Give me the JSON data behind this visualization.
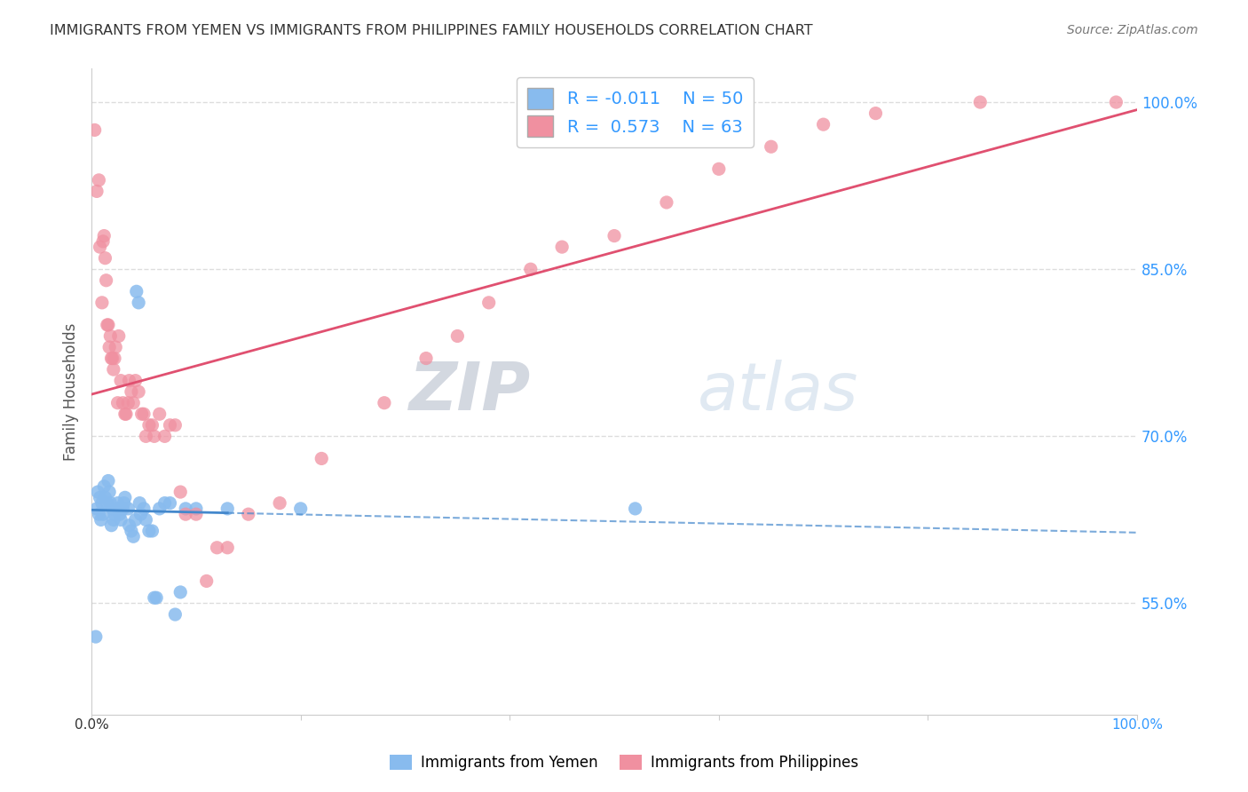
{
  "title": "IMMIGRANTS FROM YEMEN VS IMMIGRANTS FROM PHILIPPINES FAMILY HOUSEHOLDS CORRELATION CHART",
  "source": "Source: ZipAtlas.com",
  "ylabel": "Family Households",
  "xlim": [
    0.0,
    1.0
  ],
  "ylim": [
    0.45,
    1.03
  ],
  "yticks": [
    0.55,
    0.7,
    0.85,
    1.0
  ],
  "ytick_labels": [
    "55.0%",
    "70.0%",
    "85.0%",
    "100.0%"
  ],
  "legend_r_yemen": "-0.011",
  "legend_n_yemen": "50",
  "legend_r_phil": "0.573",
  "legend_n_phil": "63",
  "color_yemen": "#88bbee",
  "color_phil": "#f090a0",
  "color_trendline_yemen": "#4488cc",
  "color_trendline_phil": "#e05070",
  "background_color": "#ffffff",
  "grid_color": "#dddddd",
  "watermark_zip": "ZIP",
  "watermark_atlas": "atlas",
  "yemen_x": [
    0.004,
    0.005,
    0.006,
    0.007,
    0.008,
    0.009,
    0.01,
    0.011,
    0.012,
    0.013,
    0.015,
    0.016,
    0.017,
    0.018,
    0.019,
    0.02,
    0.021,
    0.022,
    0.025,
    0.026,
    0.027,
    0.028,
    0.03,
    0.031,
    0.032,
    0.035,
    0.036,
    0.038,
    0.04,
    0.042,
    0.043,
    0.045,
    0.046,
    0.047,
    0.05,
    0.052,
    0.055,
    0.058,
    0.06,
    0.062,
    0.065,
    0.07,
    0.075,
    0.08,
    0.085,
    0.09,
    0.1,
    0.13,
    0.2,
    0.52
  ],
  "yemen_y": [
    0.52,
    0.635,
    0.65,
    0.63,
    0.645,
    0.625,
    0.64,
    0.63,
    0.655,
    0.645,
    0.64,
    0.66,
    0.65,
    0.64,
    0.62,
    0.635,
    0.625,
    0.63,
    0.64,
    0.635,
    0.63,
    0.625,
    0.635,
    0.64,
    0.645,
    0.635,
    0.62,
    0.615,
    0.61,
    0.625,
    0.83,
    0.82,
    0.64,
    0.63,
    0.635,
    0.625,
    0.615,
    0.615,
    0.555,
    0.555,
    0.635,
    0.64,
    0.64,
    0.54,
    0.56,
    0.635,
    0.635,
    0.635,
    0.635,
    0.635
  ],
  "phil_x": [
    0.003,
    0.005,
    0.007,
    0.008,
    0.01,
    0.011,
    0.012,
    0.013,
    0.014,
    0.015,
    0.016,
    0.017,
    0.018,
    0.019,
    0.02,
    0.021,
    0.022,
    0.023,
    0.025,
    0.026,
    0.028,
    0.03,
    0.032,
    0.033,
    0.035,
    0.036,
    0.038,
    0.04,
    0.042,
    0.045,
    0.048,
    0.05,
    0.052,
    0.055,
    0.058,
    0.06,
    0.065,
    0.07,
    0.075,
    0.08,
    0.085,
    0.09,
    0.1,
    0.11,
    0.12,
    0.13,
    0.15,
    0.18,
    0.22,
    0.28,
    0.32,
    0.35,
    0.38,
    0.42,
    0.45,
    0.5,
    0.55,
    0.6,
    0.65,
    0.7,
    0.75,
    0.85,
    0.98
  ],
  "phil_y": [
    0.975,
    0.92,
    0.93,
    0.87,
    0.82,
    0.875,
    0.88,
    0.86,
    0.84,
    0.8,
    0.8,
    0.78,
    0.79,
    0.77,
    0.77,
    0.76,
    0.77,
    0.78,
    0.73,
    0.79,
    0.75,
    0.73,
    0.72,
    0.72,
    0.73,
    0.75,
    0.74,
    0.73,
    0.75,
    0.74,
    0.72,
    0.72,
    0.7,
    0.71,
    0.71,
    0.7,
    0.72,
    0.7,
    0.71,
    0.71,
    0.65,
    0.63,
    0.63,
    0.57,
    0.6,
    0.6,
    0.63,
    0.64,
    0.68,
    0.73,
    0.77,
    0.79,
    0.82,
    0.85,
    0.87,
    0.88,
    0.91,
    0.94,
    0.96,
    0.98,
    0.99,
    1.0,
    1.0
  ]
}
